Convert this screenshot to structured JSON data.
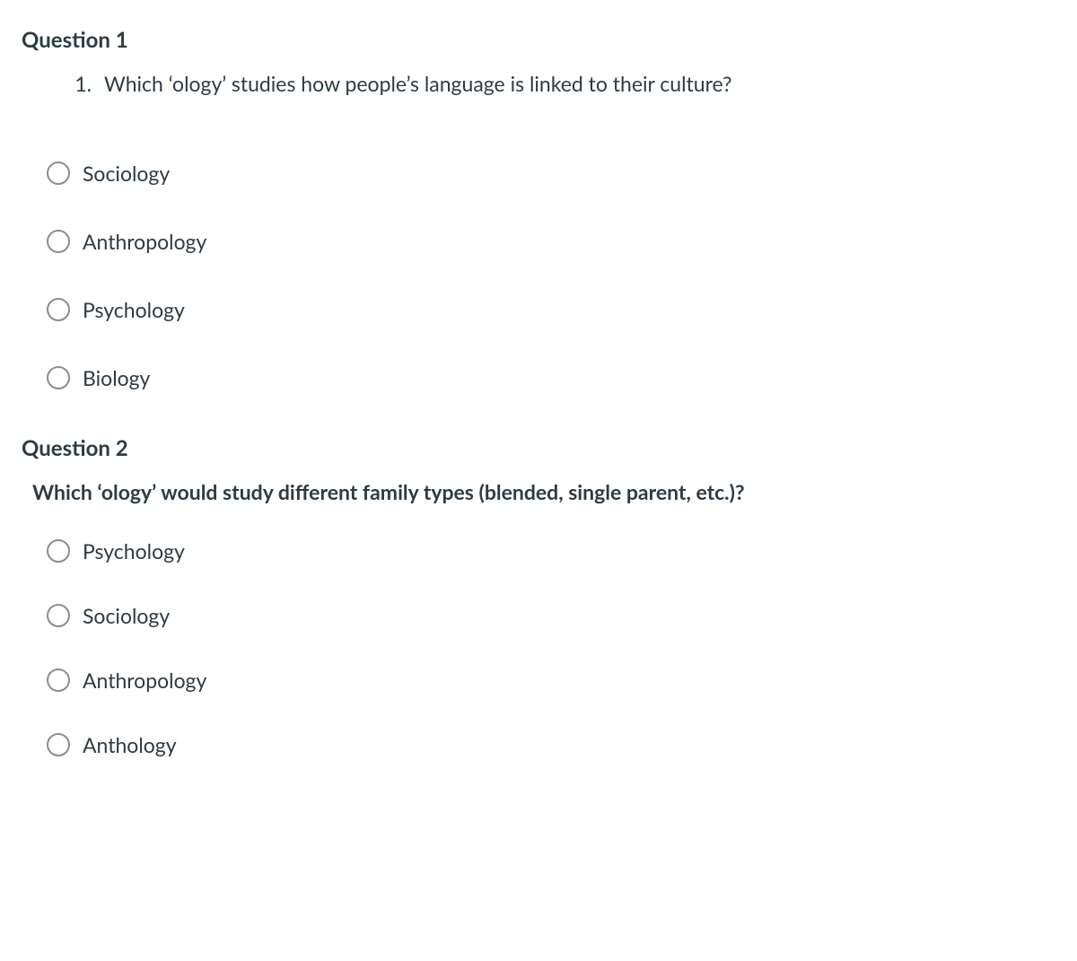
{
  "colors": {
    "text": "#2d3b45",
    "radio_border": "#878e94",
    "background": "#ffffff"
  },
  "typography": {
    "title_fontsize": 24,
    "title_weight": 700,
    "body_fontsize": 23,
    "body_weight": 400
  },
  "questions": [
    {
      "title": "Question 1",
      "prompt_style": "numbered",
      "prompt": "Which ‘ology’ studies how people’s language is linked to their culture?",
      "options": [
        "Sociology",
        "Anthropology",
        "Psychology",
        "Biology"
      ]
    },
    {
      "title": "Question 2",
      "prompt_style": "plain-bold",
      "prompt": "Which ‘ology’ would study different family types (blended, single parent, etc.)?",
      "options": [
        "Psychology",
        "Sociology",
        "Anthropology",
        "Anthology"
      ]
    }
  ]
}
